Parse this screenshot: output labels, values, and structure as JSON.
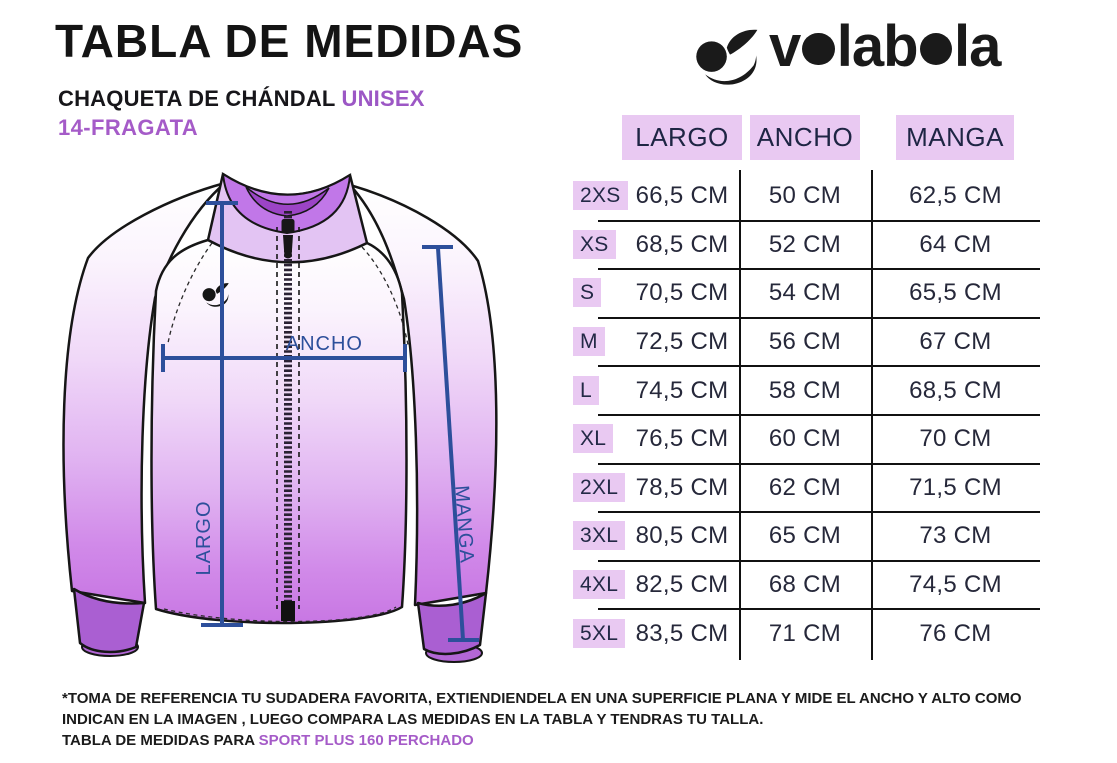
{
  "page": {
    "title": "TABLA DE MEDIDAS",
    "subtitle": "CHAQUETA DE CHÁNDAL",
    "subtitle_highlight": "UNISEX",
    "model": "14-FRAGATA"
  },
  "logo": {
    "text": "volabola"
  },
  "diagram": {
    "labels": {
      "ancho": "ANCHO",
      "largo": "LARGO",
      "manga": "MANGA"
    }
  },
  "table": {
    "columns": [
      "LARGO",
      "ANCHO",
      "MANGA"
    ],
    "rows": [
      {
        "size": "2XS",
        "largo": "66,5 CM",
        "ancho": "50 CM",
        "manga": "62,5 CM"
      },
      {
        "size": "XS",
        "largo": "68,5 CM",
        "ancho": "52 CM",
        "manga": "64 CM"
      },
      {
        "size": "S",
        "largo": "70,5 CM",
        "ancho": "54 CM",
        "manga": "65,5 CM"
      },
      {
        "size": "M",
        "largo": "72,5 CM",
        "ancho": "56 CM",
        "manga": "67 CM"
      },
      {
        "size": "L",
        "largo": "74,5 CM",
        "ancho": "58 CM",
        "manga": "68,5 CM"
      },
      {
        "size": "XL",
        "largo": "76,5 CM",
        "ancho": "60 CM",
        "manga": "70 CM"
      },
      {
        "size": "2XL",
        "largo": "78,5 CM",
        "ancho": "62 CM",
        "manga": "71,5 CM"
      },
      {
        "size": "3XL",
        "largo": "80,5 CM",
        "ancho": "65 CM",
        "manga": "73 CM"
      },
      {
        "size": "4XL",
        "largo": "82,5 CM",
        "ancho": "68 CM",
        "manga": "74,5 CM"
      },
      {
        "size": "5XL",
        "largo": "83,5 CM",
        "ancho": "71 CM",
        "manga": "76 CM"
      }
    ]
  },
  "footnote": {
    "line1": "*TOMA DE REFERENCIA TU SUDADERA FAVORITA, EXTIENDIENDELA EN UNA SUPERFICIE PLANA Y MIDE EL ANCHO Y ALTO COMO",
    "line2": "INDICAN EN LA IMAGEN , LUEGO COMPARA LAS MEDIDAS  EN LA TABLA Y TENDRAS TU TALLA.",
    "line3_prefix": "TABLA DE MEDIDAS PARA ",
    "line3_highlight": "SPORT PLUS 160 PERCHADO"
  },
  "colors": {
    "accent_purple": "#9c57c5",
    "header_bg": "#e9c9f2",
    "table_text": "#26283a",
    "navy_header": "#1e2544",
    "measure_blue": "#2d4f9b",
    "jacket_purple": "#c877e3",
    "cuff_purple": "#aa5fd2"
  }
}
